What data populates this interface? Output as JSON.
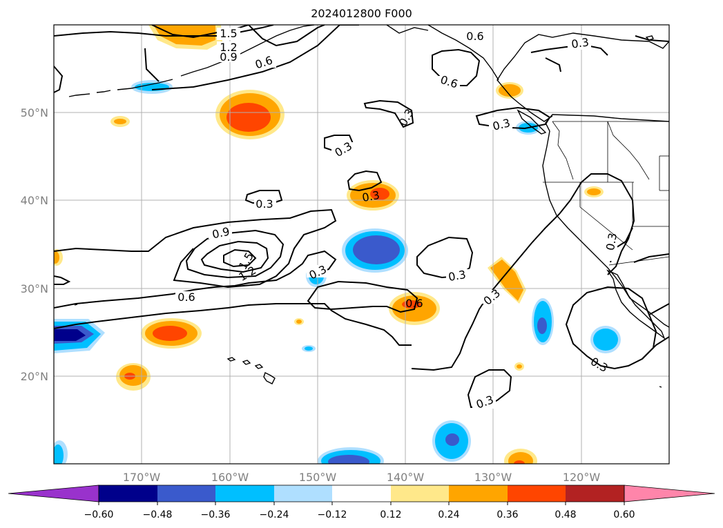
{
  "title": "2024012800 F000",
  "map": {
    "lon_range": [
      180,
      110
    ],
    "lat_range": [
      10,
      60
    ],
    "lon_ticks": [
      "170°W",
      "160°W",
      "150°W",
      "140°W",
      "130°W",
      "120°W"
    ],
    "lat_ticks": [
      "20°N",
      "30°N",
      "40°N",
      "50°N"
    ],
    "grid": true
  },
  "contour_labels": [
    "1.5",
    "1.2",
    "0.9",
    "0.6",
    "0.6",
    "0.3",
    "0.3",
    "0.6",
    "0.3",
    "0.3",
    "0.9",
    "1.2",
    "1.5",
    "0.6",
    "0.3",
    "0.3",
    "0.6",
    "0.3",
    "0.3",
    "0.3",
    "0.3",
    "0.3"
  ],
  "colorbar": {
    "ticks": [
      "−0.60",
      "−0.48",
      "−0.36",
      "−0.24",
      "−0.12",
      "0.12",
      "0.24",
      "0.36",
      "0.48",
      "0.60"
    ],
    "colors": [
      "#9932cc",
      "#00008b",
      "#3a5acc",
      "#00bfff",
      "#afdfff",
      "#ffffff",
      "#ffe88a",
      "#ffa500",
      "#ff4500",
      "#b22222",
      "#ff85aa"
    ],
    "extend": "both"
  }
}
